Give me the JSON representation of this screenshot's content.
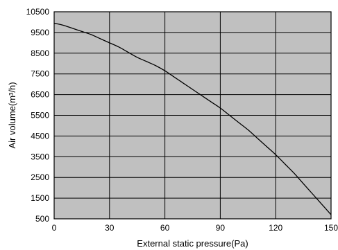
{
  "colors": {
    "plot_background": "#c0c0c0",
    "grid": "#000000",
    "curve": "#000000",
    "text": "#000000"
  },
  "chart_data": {
    "type": "line",
    "title": "",
    "xlabel": "External static pressure(Pa)",
    "ylabel": "Air volume(m³/h)",
    "xlim": [
      0,
      150
    ],
    "ylim": [
      500,
      10500
    ],
    "xticks": [
      0,
      30,
      60,
      90,
      120,
      150
    ],
    "yticks": [
      500,
      1500,
      2500,
      3500,
      4500,
      5500,
      6500,
      7500,
      8500,
      9500,
      10500
    ],
    "grid": true,
    "legend": "none",
    "series": [
      {
        "x": [
          0,
          5,
          10,
          15,
          20,
          25,
          30,
          35,
          40,
          45,
          50,
          55,
          60,
          65,
          70,
          75,
          80,
          85,
          90,
          95,
          100,
          105,
          110,
          115,
          120,
          125,
          130,
          135,
          140,
          145,
          150
        ],
        "values": [
          9950,
          9850,
          9700,
          9550,
          9400,
          9200,
          9000,
          8800,
          8550,
          8300,
          8100,
          7900,
          7650,
          7350,
          7050,
          6750,
          6450,
          6150,
          5850,
          5500,
          5150,
          4800,
          4400,
          4000,
          3600,
          3150,
          2700,
          2200,
          1700,
          1200,
          700
        ]
      }
    ]
  }
}
